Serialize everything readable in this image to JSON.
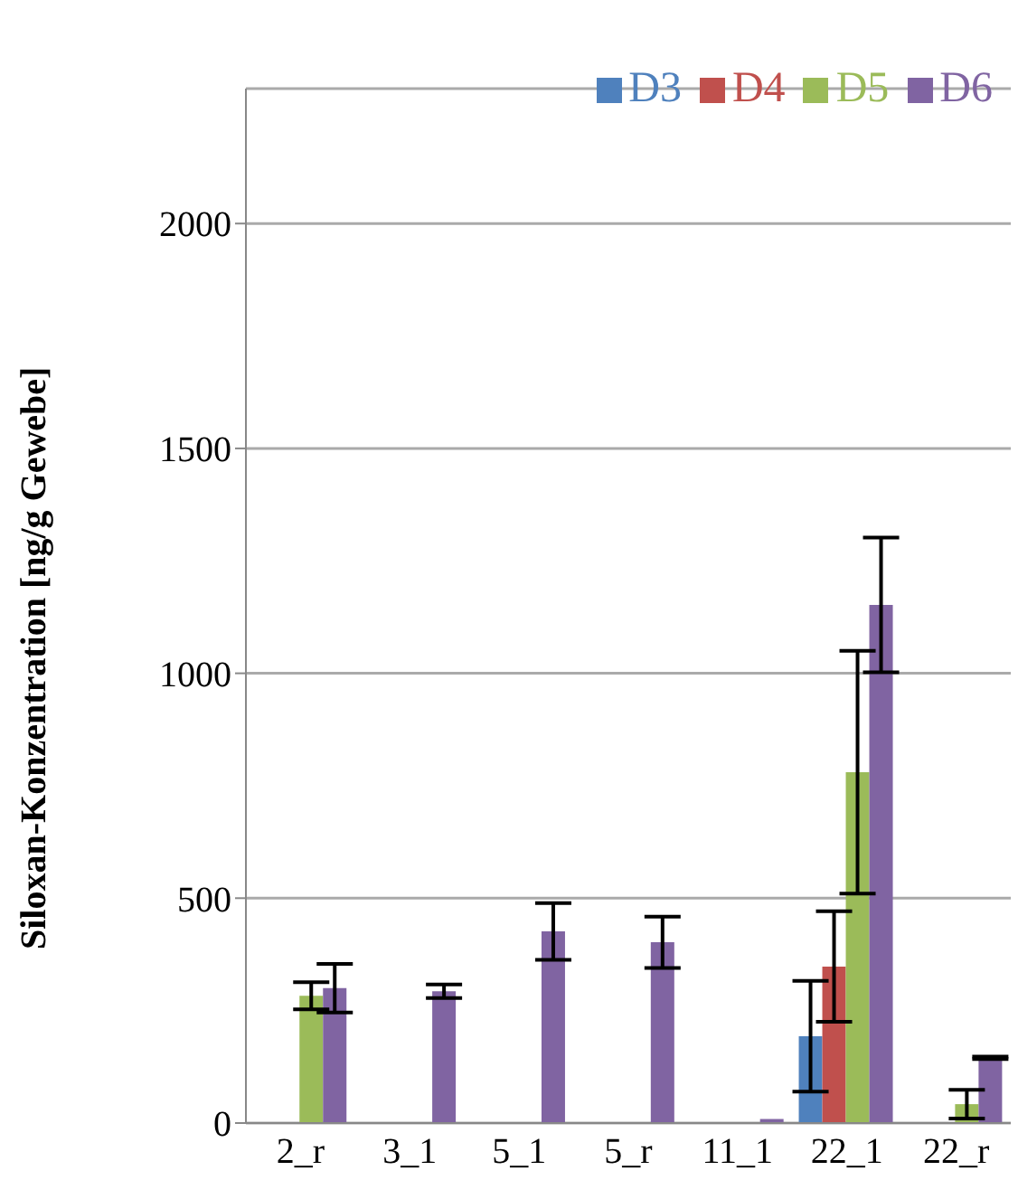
{
  "chart_data": {
    "type": "bar",
    "ylabel": "Siloxan-Konzentration  [ng/g Gewebe]",
    "categories": [
      "2_r",
      "3_1",
      "5_1",
      "5_r",
      "11_1",
      "22_1",
      "22_r"
    ],
    "series": [
      {
        "name": "D3",
        "color": "#4f81bd",
        "values": [
          null,
          null,
          null,
          null,
          null,
          193,
          null
        ],
        "errors": [
          null,
          null,
          null,
          null,
          null,
          123,
          null
        ]
      },
      {
        "name": "D4",
        "color": "#c0504d",
        "values": [
          null,
          null,
          null,
          null,
          null,
          348,
          null
        ],
        "errors": [
          null,
          null,
          null,
          null,
          null,
          123,
          null
        ]
      },
      {
        "name": "D5",
        "color": "#9bbb59",
        "values": [
          283,
          null,
          null,
          null,
          null,
          780,
          42
        ],
        "errors": [
          30,
          null,
          null,
          null,
          null,
          270,
          32
        ]
      },
      {
        "name": "D6",
        "color": "#8064a2",
        "values": [
          300,
          293,
          426,
          402,
          9,
          1152,
          145
        ],
        "errors": [
          54,
          15,
          63,
          57,
          null,
          150,
          3
        ]
      }
    ],
    "ylim": [
      0,
      2300
    ],
    "yticks": [
      0,
      500,
      1000,
      1500,
      2000
    ],
    "grid": "y",
    "legend": "top"
  }
}
